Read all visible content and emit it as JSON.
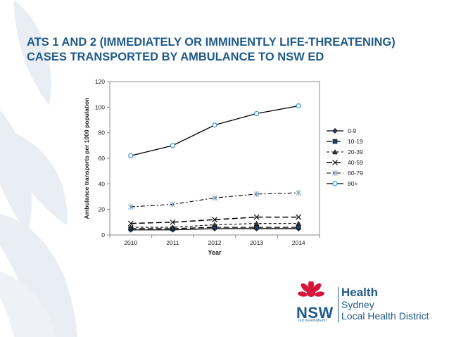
{
  "slide": {
    "title_line1": "ATS 1 AND 2 (IMMEDIATELY OR IMMINENTLY LIFE-THREATENING)",
    "title_line2": "CASES TRANSPORTED BY AMBULANCE TO NSW ED"
  },
  "logo": {
    "org": "NSW",
    "org_sub": "GOVERNMENT",
    "line1": "Health",
    "line2": "Sydney",
    "line3": "Local Health District"
  },
  "colors": {
    "title": "#1f5a8a",
    "logo_red": "#d7153a",
    "watermark": "#e7ecf2"
  },
  "chart_data": {
    "type": "line",
    "title": "",
    "xlabel": "Year",
    "ylabel": "Ambulance transports per 1000 population",
    "x": [
      "2010",
      "2011",
      "2012",
      "2013",
      "2014"
    ],
    "ylim": [
      0,
      120
    ],
    "yticks": [
      "0",
      "20",
      "40",
      "60",
      "80",
      "100",
      "120"
    ],
    "legend_position": "right",
    "grid": false,
    "series": [
      {
        "name": "0-9",
        "values": [
          4,
          4,
          5,
          5,
          5
        ],
        "marker": "diamond",
        "dash": "solid"
      },
      {
        "name": "10-19",
        "values": [
          5,
          5,
          6,
          6,
          6
        ],
        "marker": "square",
        "dash": "longdash"
      },
      {
        "name": "20-39",
        "values": [
          6,
          6,
          8,
          9,
          9
        ],
        "marker": "triangle",
        "dash": "shortdash"
      },
      {
        "name": "40-59",
        "values": [
          9,
          10,
          12,
          14,
          14
        ],
        "marker": "x",
        "dash": "longdash"
      },
      {
        "name": "60-79",
        "values": [
          22,
          24,
          29,
          32,
          33
        ],
        "marker": "asterisk",
        "dash": "dashdot"
      },
      {
        "name": "80+",
        "values": [
          62,
          70,
          86,
          95,
          101
        ],
        "marker": "circle",
        "dash": "solid"
      }
    ]
  }
}
